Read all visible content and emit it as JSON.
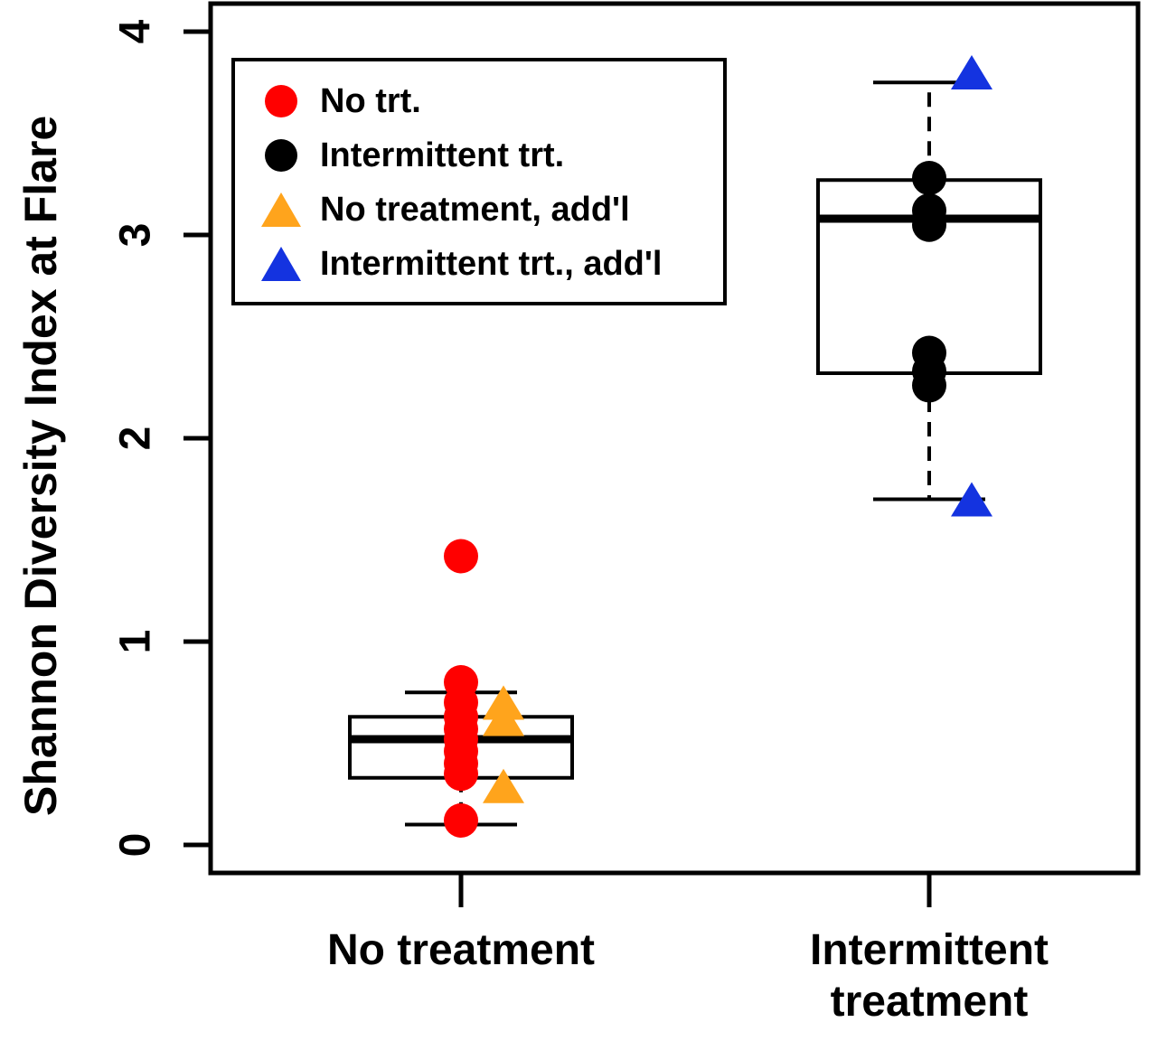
{
  "figure": {
    "background": "#ffffff",
    "axis_color": "#000000"
  },
  "chart_data": {
    "type": "boxplot",
    "title": "",
    "xlabel": "",
    "ylabel": "Shannon Diversity Index at Flare",
    "ylim": [
      0,
      4
    ],
    "yticks": [
      0,
      1,
      2,
      3,
      4
    ],
    "grid": false,
    "categories": [
      "No treatment",
      "Intermittent\ntreatment"
    ],
    "boxes": [
      {
        "group": "No treatment",
        "whisker_low": 0.1,
        "q1": 0.33,
        "median": 0.52,
        "q3": 0.63,
        "whisker_high": 0.75
      },
      {
        "group": "Intermittent treatment",
        "whisker_low": 1.7,
        "q1": 2.32,
        "median": 3.08,
        "q3": 3.27,
        "whisker_high": 3.75
      }
    ],
    "series": [
      {
        "name": "No trt.",
        "marker": "circle",
        "color": "#ff0000",
        "group": 0,
        "values": [
          1.42,
          0.8,
          0.7,
          0.63,
          0.57,
          0.52,
          0.46,
          0.4,
          0.35,
          0.12
        ]
      },
      {
        "name": "Intermittent trt.",
        "marker": "circle",
        "color": "#000000",
        "group": 1,
        "values": [
          3.28,
          3.12,
          3.05,
          2.42,
          2.33,
          2.26
        ]
      },
      {
        "name": "No treatment, add'l",
        "marker": "triangle",
        "color": "#ffa41c",
        "group": 0,
        "values": [
          0.68,
          0.6,
          0.27
        ]
      },
      {
        "name": "Intermittent trt., add'l",
        "marker": "triangle",
        "color": "#1433e0",
        "group": 1,
        "values": [
          3.78,
          1.68
        ]
      }
    ],
    "legend": {
      "position": "top-left",
      "entries": [
        {
          "label": "No trt.",
          "marker": "circle",
          "color": "#ff0000"
        },
        {
          "label": "Intermittent trt.",
          "marker": "circle",
          "color": "#000000"
        },
        {
          "label": "No treatment, add'l",
          "marker": "triangle",
          "color": "#ffa41c"
        },
        {
          "label": "Intermittent trt., add'l",
          "marker": "triangle",
          "color": "#1433e0"
        }
      ]
    }
  }
}
